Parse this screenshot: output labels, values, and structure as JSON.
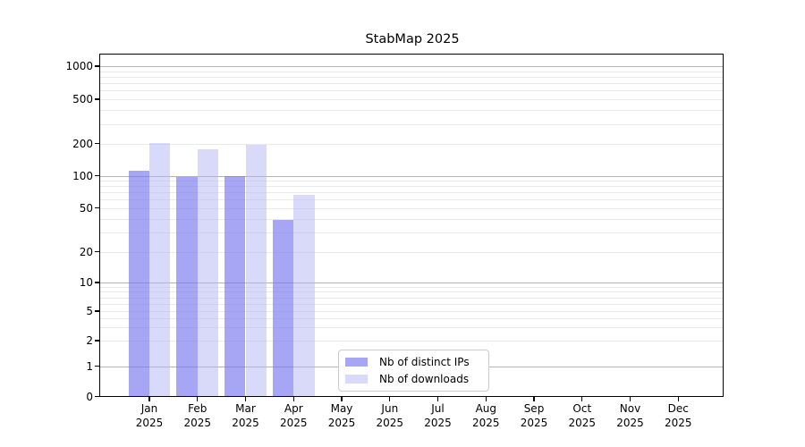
{
  "figure": {
    "background": "#ffffff"
  },
  "chart_data": {
    "type": "bar",
    "title": "StabMap 2025",
    "xlabel": "",
    "ylabel": "",
    "yscale": "symlog (logarithmic above 1, linear 0-1)",
    "grid": "both (major gray lines at powers of 10, faint minor lines at 2-9 multiples)",
    "legend_position": "inside axes, lower center-left",
    "ylim": [
      0,
      1350
    ],
    "yticks": [
      0,
      1,
      2,
      5,
      10,
      20,
      50,
      100,
      200,
      500,
      1000
    ],
    "ytick_labels": [
      "0",
      "1",
      "2",
      "5",
      "10",
      "20",
      "50",
      "100",
      "200",
      "500",
      "1000"
    ],
    "categories": [
      "Jan 2025",
      "Feb 2025",
      "Mar 2025",
      "Apr 2025",
      "May 2025",
      "Jun 2025",
      "Jul 2025",
      "Aug 2025",
      "Sep 2025",
      "Oct 2025",
      "Nov 2025",
      "Dec 2025"
    ],
    "x_ticks": [
      {
        "month": "Jan",
        "year": "2025"
      },
      {
        "month": "Feb",
        "year": "2025"
      },
      {
        "month": "Mar",
        "year": "2025"
      },
      {
        "month": "Apr",
        "year": "2025"
      },
      {
        "month": "May",
        "year": "2025"
      },
      {
        "month": "Jun",
        "year": "2025"
      },
      {
        "month": "Jul",
        "year": "2025"
      },
      {
        "month": "Aug",
        "year": "2025"
      },
      {
        "month": "Sep",
        "year": "2025"
      },
      {
        "month": "Oct",
        "year": "2025"
      },
      {
        "month": "Nov",
        "year": "2025"
      },
      {
        "month": "Dec",
        "year": "2025"
      }
    ],
    "series": [
      {
        "name": "Nb of distinct IPs",
        "color": "rgba(119,119,238,0.65)",
        "color_hex_approx": "#a4a4f3",
        "values": [
          112,
          98,
          100,
          39,
          null,
          null,
          null,
          null,
          null,
          null,
          null,
          null
        ]
      },
      {
        "name": "Nb of downloads",
        "color": "rgba(180,180,245,0.5)",
        "color_hex_approx": "#dadafa",
        "values": [
          202,
          177,
          197,
          66,
          null,
          null,
          null,
          null,
          null,
          null,
          null,
          null
        ]
      }
    ],
    "colors": {
      "grid_major": "#b3b3b3",
      "grid_minor": "#eaeaea",
      "axis": "#000000",
      "legend_border": "#cccccc",
      "text": "#000000"
    }
  }
}
